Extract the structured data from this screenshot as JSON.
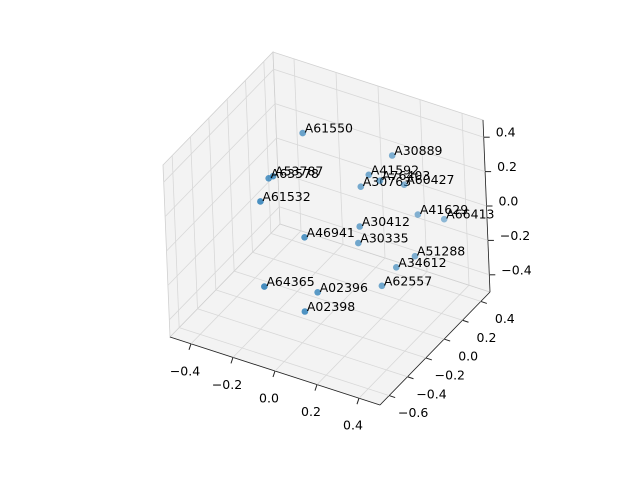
{
  "chart_data": {
    "type": "scatter3d",
    "color": "#1f77b4",
    "labels": [
      "A61550",
      "A30889",
      "A41592",
      "A30763",
      "A76403",
      "A60427",
      "A53787",
      "A63578",
      "A61532",
      "A30412",
      "A41629",
      "A66413",
      "A46941",
      "A30335",
      "A51288",
      "A34612",
      "A62557",
      "A64365",
      "A02396",
      "A02398"
    ],
    "x": [
      -0.17,
      0.17,
      0.09,
      0.04,
      0.12,
      0.19,
      -0.22,
      -0.26,
      -0.24,
      0.05,
      0.25,
      0.33,
      -0.08,
      0.04,
      0.26,
      0.2,
      0.15,
      -0.21,
      -0.06,
      -0.07
    ],
    "y": [
      0.06,
      0.25,
      0.17,
      0.19,
      0.22,
      0.32,
      -0.16,
      -0.12,
      -0.26,
      0.14,
      0.32,
      0.42,
      -0.16,
      0.14,
      0.25,
      0.18,
      0.13,
      -0.32,
      -0.09,
      -0.21
    ],
    "z": [
      0.4,
      0.3,
      0.2,
      0.1,
      0.15,
      0.1,
      0.25,
      0.2,
      0.15,
      -0.1,
      -0.05,
      -0.1,
      -0.05,
      -0.2,
      -0.25,
      -0.3,
      -0.4,
      -0.3,
      -0.4,
      -0.45
    ],
    "xlim": [
      -0.5,
      0.5
    ],
    "ylim": [
      -0.7,
      0.5
    ],
    "zlim": [
      -0.5,
      0.5
    ],
    "xticks": [
      {
        "value": -0.4,
        "label": "−0.4"
      },
      {
        "value": -0.2,
        "label": "−0.2"
      },
      {
        "value": 0,
        "label": "0.0"
      },
      {
        "value": 0.2,
        "label": "0.2"
      },
      {
        "value": 0.4,
        "label": "0.4"
      }
    ],
    "yticks": [
      {
        "value": -0.6,
        "label": "−0.6"
      },
      {
        "value": -0.4,
        "label": "−0.4"
      },
      {
        "value": -0.2,
        "label": "−0.2"
      },
      {
        "value": 0,
        "label": "0.0"
      },
      {
        "value": 0.2,
        "label": "0.2"
      },
      {
        "value": 0.4,
        "label": "0.4"
      }
    ],
    "zticks": [
      {
        "value": -0.4,
        "label": "−0.4"
      },
      {
        "value": -0.2,
        "label": "−0.2"
      },
      {
        "value": 0,
        "label": "0.0"
      },
      {
        "value": 0.2,
        "label": "0.2"
      },
      {
        "value": 0.4,
        "label": "0.4"
      }
    ],
    "grid": true
  }
}
